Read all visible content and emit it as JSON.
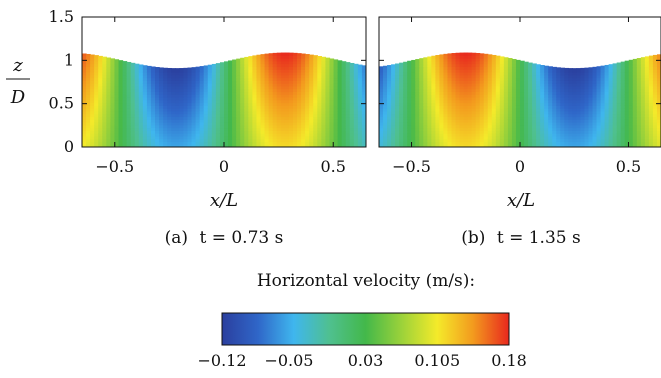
{
  "chart_data": [
    {
      "type": "heatmap",
      "subtitle_label": "(a)",
      "subtitle_math": "t = 0.73 s",
      "xlabel": "x/L",
      "ylabel_num": "z",
      "ylabel_den": "D",
      "xlim": [
        -0.65,
        0.65
      ],
      "ylim": [
        0,
        1.5
      ],
      "xticks": [
        -0.5,
        0,
        0.5
      ],
      "xtick_labels": [
        "−0.5",
        "0",
        "0.5"
      ],
      "yticks": [
        0,
        0.5,
        1,
        1.5
      ],
      "ytick_labels": [
        "0",
        "0.5",
        "1",
        "1.5"
      ],
      "surface_mean": 1.0,
      "surface_amplitude": 0.09,
      "surface_crest_x": 0.28,
      "velocity_amplitude": 0.17,
      "velocity_peak_x": 0.28
    },
    {
      "type": "heatmap",
      "subtitle_label": "(b)",
      "subtitle_math": "t = 1.35 s",
      "xlabel": "x/L",
      "xlim": [
        -0.65,
        0.65
      ],
      "ylim": [
        0,
        1.5
      ],
      "xticks": [
        -0.5,
        0,
        0.5
      ],
      "xtick_labels": [
        "−0.5",
        "0",
        "0.5"
      ],
      "surface_mean": 1.0,
      "surface_amplitude": 0.09,
      "surface_crest_x": -0.25,
      "velocity_amplitude": 0.17,
      "velocity_peak_x": -0.25
    }
  ],
  "colorbar": {
    "title": "Horizontal velocity (m/s):",
    "min": -0.12,
    "max": 0.18,
    "ticks": [
      -0.12,
      -0.05,
      0.03,
      0.105,
      0.18
    ],
    "tick_labels": [
      "−0.12",
      "−0.05",
      "0.03",
      "0.105",
      "0.18"
    ],
    "stops": [
      "#2b3f9e",
      "#2f66c8",
      "#3fb6ee",
      "#4fc08f",
      "#43b84a",
      "#9bd23a",
      "#f4ea2a",
      "#f39a1e",
      "#e8281e"
    ]
  }
}
